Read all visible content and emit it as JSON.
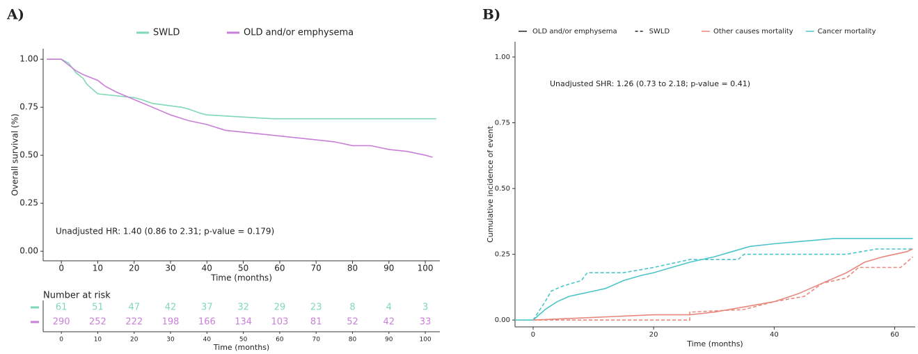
{
  "chart_data": [
    {
      "type": "line",
      "panel": "A)",
      "x_label": "Time (months)",
      "y_label": "Overall survival (%)",
      "annotation": "Unadjusted HR: 1.40 (0.86 to 2.31; p-value = 0.179)",
      "xlim": [
        -5,
        104
      ],
      "xticks": [
        0,
        10,
        20,
        30,
        40,
        50,
        60,
        70,
        80,
        90,
        100
      ],
      "ylim": [
        -0.05,
        1.055
      ],
      "yticks": [
        {
          "value": 0,
          "label": "0.00"
        },
        0.25,
        {
          "value": 0.5,
          "label": "0.50"
        },
        0.75,
        {
          "value": 1,
          "label": "1.00"
        }
      ],
      "series": [
        {
          "name": "SWLD",
          "color": "#7fd8b6",
          "x": [
            -4,
            0,
            2,
            4,
            6,
            7,
            10,
            20,
            22,
            25,
            33,
            35,
            38,
            40,
            58,
            103
          ],
          "values": [
            1,
            1,
            0.98,
            0.93,
            0.9,
            0.87,
            0.82,
            0.8,
            0.79,
            0.77,
            0.75,
            0.74,
            0.72,
            0.71,
            0.69,
            0.69
          ]
        },
        {
          "name": "OLD and/or emphysema",
          "color": "#c97fd8",
          "x": [
            -4,
            0,
            2,
            4,
            6,
            10,
            12,
            15,
            20,
            25,
            30,
            35,
            40,
            45,
            50,
            55,
            60,
            65,
            70,
            75,
            80,
            85,
            90,
            95,
            100,
            102
          ],
          "values": [
            1,
            1,
            0.97,
            0.94,
            0.92,
            0.89,
            0.86,
            0.83,
            0.79,
            0.75,
            0.71,
            0.68,
            0.66,
            0.63,
            0.62,
            0.61,
            0.6,
            0.59,
            0.58,
            0.57,
            0.55,
            0.55,
            0.53,
            0.52,
            0.5,
            0.49
          ]
        }
      ],
      "risk_table": {
        "title": "Number at risk",
        "rows": [
          {
            "color": "#7fd8b6",
            "values": [
              61,
              51,
              47,
              42,
              37,
              32,
              29,
              23,
              8,
              4,
              3
            ]
          },
          {
            "color": "#c97fd8",
            "values": [
              290,
              252,
              222,
              198,
              166,
              134,
              103,
              81,
              52,
              42,
              33
            ]
          }
        ]
      }
    },
    {
      "type": "line",
      "panel": "B)",
      "x_label": "Time (months)",
      "y_label": "Cumulative incidence of event",
      "annotation": "Unadjusted SHR: 1.26 (0.73 to 2.18; p-value = 0.41)",
      "xlim": [
        -3,
        63.4
      ],
      "xticks": [
        0,
        20,
        40,
        60
      ],
      "ylim": [
        -0.026,
        1.058
      ],
      "yticks": [
        {
          "value": 0,
          "label": "0.00"
        },
        0.25,
        {
          "value": 0.5,
          "label": "0.50"
        },
        0.75,
        {
          "value": 1,
          "label": "1.00"
        }
      ],
      "legend": {
        "linetypes": [
          {
            "label": "OLD and/or emphysema",
            "dash": "solid"
          },
          {
            "label": "SWLD",
            "dash": "dashed"
          }
        ],
        "colors": [
          {
            "label": "Other causes mortality",
            "color": "#e8887c"
          },
          {
            "label": "Cancer mortality",
            "color": "#4cc4ca"
          }
        ]
      },
      "series": [
        {
          "color": "#4cc4ca",
          "dash": "solid",
          "x": [
            -3,
            0,
            1,
            2,
            4,
            6,
            8,
            10,
            12,
            15,
            18,
            20,
            23,
            26,
            30,
            33,
            36,
            40,
            45,
            50,
            55,
            63
          ],
          "values": [
            0,
            0,
            0.02,
            0.04,
            0.07,
            0.09,
            0.1,
            0.11,
            0.12,
            0.15,
            0.17,
            0.18,
            0.2,
            0.22,
            0.24,
            0.26,
            0.28,
            0.29,
            0.3,
            0.31,
            0.31,
            0.31
          ]
        },
        {
          "color": "#4cc4ca",
          "dash": "dashed",
          "x": [
            0,
            2,
            3,
            5,
            8,
            9,
            15,
            20,
            26,
            34,
            35,
            52,
            57,
            63
          ],
          "values": [
            0,
            0.07,
            0.11,
            0.13,
            0.15,
            0.18,
            0.18,
            0.2,
            0.23,
            0.23,
            0.25,
            0.25,
            0.27,
            0.27
          ]
        },
        {
          "color": "#e8887c",
          "dash": "solid",
          "x": [
            0,
            10,
            20,
            26,
            30,
            35,
            40,
            44,
            48,
            52,
            55,
            58,
            62,
            63
          ],
          "values": [
            0,
            0.01,
            0.02,
            0.02,
            0.03,
            0.05,
            0.07,
            0.1,
            0.14,
            0.18,
            0.22,
            0.24,
            0.26,
            0.27
          ]
        },
        {
          "color": "#e8887c",
          "dash": "dashed",
          "x": [
            0,
            26,
            26,
            35,
            40,
            45,
            48,
            52,
            54,
            61,
            63
          ],
          "values": [
            0,
            0,
            0.03,
            0.04,
            0.07,
            0.09,
            0.14,
            0.16,
            0.2,
            0.2,
            0.24
          ]
        }
      ]
    }
  ]
}
